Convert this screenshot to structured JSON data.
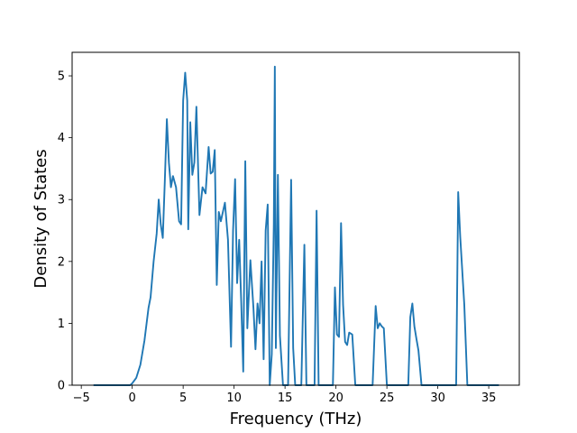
{
  "chart_data": {
    "type": "line",
    "xlabel": "Frequency (THz)",
    "ylabel": "Density of States",
    "xlim": [
      -5.9,
      38.0
    ],
    "ylim": [
      0,
      5.38
    ],
    "xticks": [
      -5,
      0,
      5,
      10,
      15,
      20,
      25,
      30,
      35
    ],
    "yticks": [
      0,
      1,
      2,
      3,
      4,
      5
    ],
    "grid": false,
    "series": [
      {
        "name": "",
        "color": "#1f77b4",
        "x": [
          -3.8,
          -0.2,
          0.0,
          0.4,
          0.8,
          1.2,
          1.6,
          1.8,
          2.1,
          2.4,
          2.6,
          2.8,
          3.0,
          3.2,
          3.4,
          3.6,
          3.8,
          4.0,
          4.3,
          4.6,
          4.8,
          5.0,
          5.2,
          5.4,
          5.5,
          5.7,
          5.9,
          6.1,
          6.3,
          6.6,
          6.9,
          7.2,
          7.5,
          7.7,
          7.9,
          8.1,
          8.3,
          8.5,
          8.7,
          8.9,
          9.1,
          9.4,
          9.7,
          9.9,
          10.1,
          10.3,
          10.5,
          10.7,
          10.9,
          11.1,
          11.3,
          11.6,
          11.9,
          12.1,
          12.3,
          12.5,
          12.7,
          12.9,
          13.1,
          13.3,
          13.5,
          13.7,
          13.9,
          14.0,
          14.1,
          14.3,
          14.5,
          14.8,
          15.0,
          15.3,
          15.6,
          15.8,
          16.0,
          16.3,
          16.6,
          16.9,
          17.1,
          17.3,
          17.6,
          17.9,
          18.1,
          18.3,
          18.5,
          18.7,
          19.2,
          19.7,
          19.9,
          20.1,
          20.3,
          20.5,
          20.7,
          20.9,
          21.1,
          21.3,
          21.6,
          21.9,
          22.3,
          22.8,
          23.3,
          23.6,
          23.9,
          24.1,
          24.3,
          24.5,
          24.7,
          25.0,
          26.0,
          27.1,
          27.3,
          27.5,
          27.7,
          27.9,
          28.1,
          28.4,
          28.7,
          29.2,
          30.5,
          31.8,
          32.0,
          32.2,
          32.6,
          32.9,
          33.2,
          36.0
        ],
        "y": [
          0,
          0.0,
          0.03,
          0.12,
          0.33,
          0.72,
          1.25,
          1.42,
          2.0,
          2.45,
          3.0,
          2.6,
          2.38,
          3.3,
          4.3,
          3.6,
          3.2,
          3.38,
          3.2,
          2.65,
          2.6,
          4.6,
          5.05,
          4.6,
          2.52,
          4.25,
          3.4,
          3.6,
          4.5,
          2.75,
          3.2,
          3.1,
          3.85,
          3.42,
          3.45,
          3.8,
          1.62,
          2.8,
          2.65,
          2.8,
          2.95,
          2.35,
          0.62,
          2.5,
          3.33,
          1.65,
          2.35,
          1.35,
          0.22,
          3.62,
          0.92,
          2.02,
          1.25,
          0.58,
          1.32,
          1.0,
          2.0,
          0.42,
          2.5,
          2.92,
          0.0,
          0.5,
          2.6,
          5.15,
          0.6,
          3.4,
          0.8,
          0.0,
          0.0,
          0.0,
          3.32,
          0.6,
          0.0,
          0.0,
          0.0,
          2.27,
          0.0,
          0.0,
          0.0,
          0.0,
          2.82,
          0.0,
          0.0,
          0.0,
          0.0,
          0.0,
          1.58,
          0.82,
          0.78,
          2.62,
          1.3,
          0.7,
          0.65,
          0.85,
          0.82,
          0.0,
          0.0,
          0.0,
          0.0,
          0.0,
          1.28,
          0.92,
          1.0,
          0.95,
          0.92,
          0.0,
          0.0,
          0.0,
          1.1,
          1.32,
          0.95,
          0.75,
          0.56,
          0.0,
          0.0,
          0.0,
          0.0,
          0.0,
          3.12,
          2.4,
          1.3,
          0.0,
          0.0,
          0.0
        ]
      }
    ]
  }
}
